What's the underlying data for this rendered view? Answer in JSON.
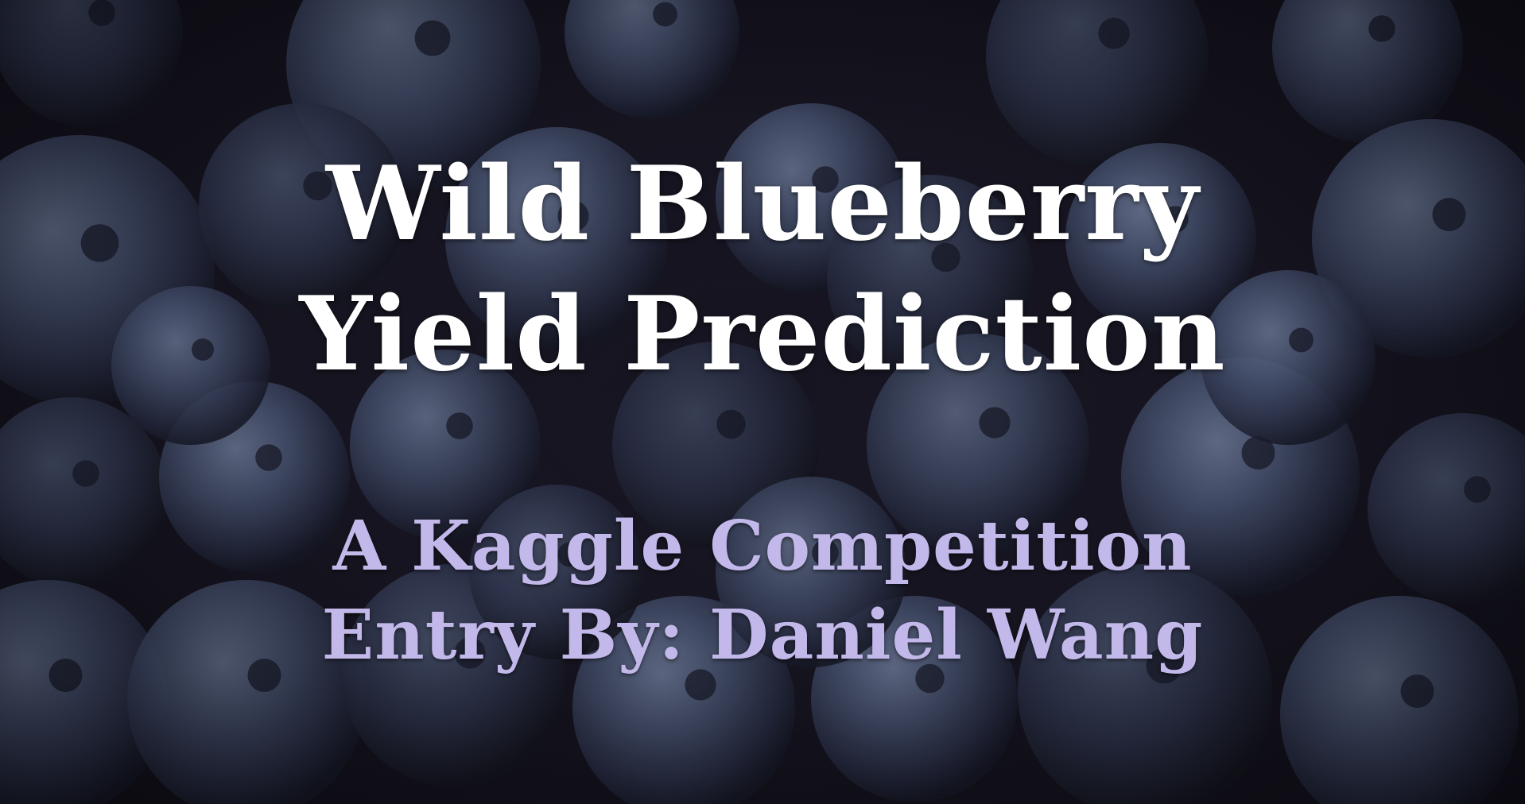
{
  "title": {
    "line1": "Wild Blueberry",
    "line2": "Yield Prediction"
  },
  "subtitle": {
    "line1": "A Kaggle Competition",
    "line2": "Entry By: Daniel Wang"
  },
  "colors": {
    "background": "#16141f",
    "title": "#ffffff",
    "subtitle": "#c2b8ea",
    "berry": "#5a6a8c"
  },
  "background_image": "blueberries-photo"
}
